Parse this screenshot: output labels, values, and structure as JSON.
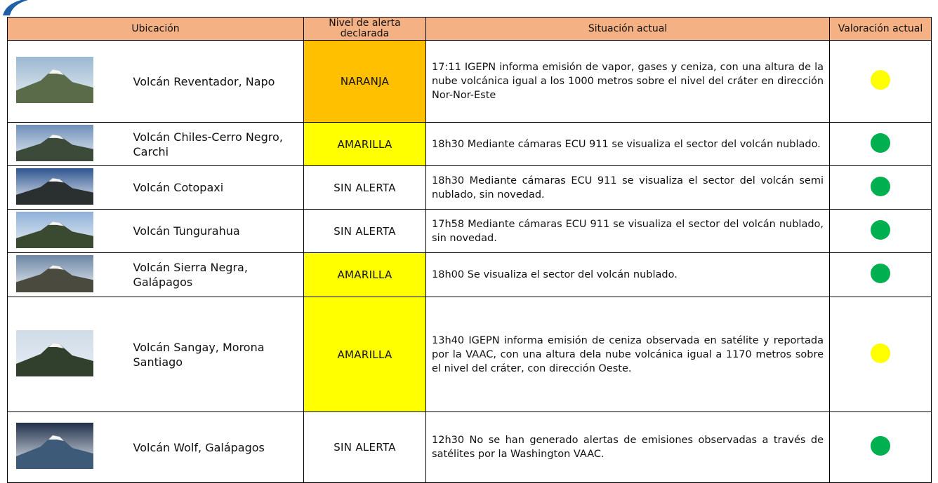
{
  "header": {
    "columns": [
      "Ubicación",
      "Nivel de alerta declarada",
      "Situación actual",
      "Valoración actual"
    ]
  },
  "rows": [
    {
      "location": "Volcán Reventador, Napo",
      "alert": "NARANJA",
      "alert_color": "#ffc000",
      "situation": "17:11 IGEPN informa emisión de vapor, gases y ceniza, con una altura de la nube volcánica igual a los 1000 metros sobre el nivel del cráter en dirección Nor-Nor-Este",
      "indicator_color": "#ffff00"
    },
    {
      "location": "Volcán Chiles-Cerro Negro, Carchi",
      "alert": "AMARILLA",
      "alert_color": "#ffff00",
      "situation": "18h30 Mediante cámaras ECU 911 se visualiza el sector del volcán nublado.",
      "indicator_color": "#00b050"
    },
    {
      "location": "Volcán Cotopaxi",
      "alert": "SIN ALERTA",
      "alert_color": "#ffffff",
      "situation": "18h30 Mediante cámaras ECU 911 se visualiza el sector del volcán semi nublado, sin novedad.",
      "indicator_color": "#00b050"
    },
    {
      "location": "Volcán Tungurahua",
      "alert": "SIN ALERTA",
      "alert_color": "#ffffff",
      "situation": "17h58 Mediante cámaras ECU 911 se visualiza el sector del volcán nublado, sin novedad.",
      "indicator_color": "#00b050"
    },
    {
      "location": "Volcán Sierra Negra, Galápagos",
      "alert": "AMARILLA",
      "alert_color": "#ffff00",
      "situation": "18h00 Se visualiza el sector del volcán nublado.",
      "indicator_color": "#00b050"
    },
    {
      "location": "Volcán Sangay, Morona Santiago",
      "alert": "AMARILLA",
      "alert_color": "#ffff00",
      "situation": "13h40 IGEPN informa emisión de ceniza observada en satélite y reportada por la VAAC, con una altura dela nube volcánica igual a 1170 metros sobre el nivel del cráter, con dirección Oeste.",
      "indicator_color": "#ffff00"
    },
    {
      "location": "Volcán Wolf, Galápagos",
      "alert": "SIN ALERTA",
      "alert_color": "#ffffff",
      "situation": "12h30 No se han generado alertas de emisiones observadas a través de satélites por la Washington VAAC.",
      "indicator_color": "#00b050"
    }
  ]
}
